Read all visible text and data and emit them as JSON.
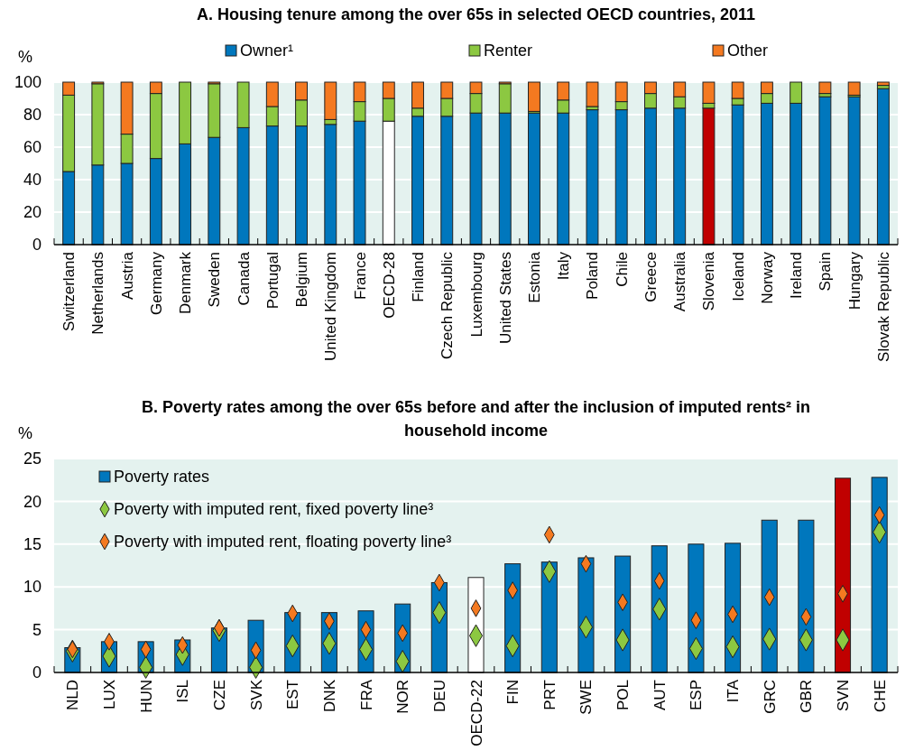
{
  "chart_data": [
    {
      "type": "bar",
      "title": "A. Housing tenure among the over 65s in selected OECD countries, 2011",
      "ylabel": "%",
      "stacked": true,
      "legend": "top",
      "grid": "y",
      "ylim": [
        0,
        100
      ],
      "yticks": [
        0,
        20,
        40,
        60,
        80,
        100
      ],
      "categories": [
        "Switzerland",
        "Netherlands",
        "Austria",
        "Germany",
        "Denmark",
        "Sweden",
        "Canada",
        "Portugal",
        "Belgium",
        "United Kingdom",
        "France",
        "OECD-28",
        "Finland",
        "Czech Republic",
        "Luxembourg",
        "United States",
        "Estonia",
        "Italy",
        "Poland",
        "Chile",
        "Greece",
        "Australia",
        "Slovenia",
        "Iceland",
        "Norway",
        "Ireland",
        "Spain",
        "Hungary",
        "Slovak Republic"
      ],
      "series": [
        {
          "name": "Owner¹",
          "color": "#0077bd",
          "colors": [
            "#0077bd",
            "#0077bd",
            "#0077bd",
            "#0077bd",
            "#0077bd",
            "#0077bd",
            "#0077bd",
            "#0077bd",
            "#0077bd",
            "#0077bd",
            "#0077bd",
            "#ffffff",
            "#0077bd",
            "#0077bd",
            "#0077bd",
            "#0077bd",
            "#0077bd",
            "#0077bd",
            "#0077bd",
            "#0077bd",
            "#0077bd",
            "#0077bd",
            "#c00000",
            "#0077bd",
            "#0077bd",
            "#0077bd",
            "#0077bd",
            "#0077bd",
            "#0077bd"
          ],
          "values": [
            45,
            49,
            50,
            53,
            62,
            66,
            72,
            73,
            73,
            74,
            76,
            76,
            79,
            79,
            81,
            81,
            81,
            81,
            83,
            83,
            84,
            84,
            84,
            86,
            87,
            87,
            91,
            91,
            96
          ]
        },
        {
          "name": "Renter",
          "color": "#8cc841",
          "values": [
            47,
            50,
            18,
            40,
            38,
            33,
            28,
            12,
            16,
            3,
            12,
            14,
            5,
            11,
            12,
            18,
            1,
            8,
            2,
            5,
            9,
            7,
            3,
            4,
            6,
            13,
            2,
            1,
            2
          ]
        },
        {
          "name": "Other",
          "color": "#f47920",
          "values": [
            8,
            1,
            32,
            7,
            0,
            1,
            0,
            15,
            11,
            23,
            12,
            10,
            16,
            10,
            7,
            1,
            18,
            11,
            15,
            12,
            7,
            9,
            13,
            10,
            7,
            0,
            7,
            8,
            2
          ]
        }
      ]
    },
    {
      "type": "bar",
      "title": "B. Poverty rates among the over 65s before and after the inclusion of imputed rents² in household income",
      "ylabel": "%",
      "legend": "top left",
      "grid": "y",
      "marker": "diamond",
      "ylim": [
        0,
        25
      ],
      "yticks": [
        0,
        5,
        10,
        15,
        20,
        25
      ],
      "categories": [
        "NLD",
        "LUX",
        "HUN",
        "ISL",
        "CZE",
        "SVK",
        "EST",
        "DNK",
        "FRA",
        "NOR",
        "DEU",
        "OECD-22",
        "FIN",
        "PRT",
        "SWE",
        "POL",
        "AUT",
        "ESP",
        "ITA",
        "GRC",
        "GBR",
        "SVN",
        "CHE"
      ],
      "series": [
        {
          "name": "Poverty rates",
          "color": "#0077bd",
          "colors": [
            "#0077bd",
            "#0077bd",
            "#0077bd",
            "#0077bd",
            "#0077bd",
            "#0077bd",
            "#0077bd",
            "#0077bd",
            "#0077bd",
            "#0077bd",
            "#0077bd",
            "#ffffff",
            "#0077bd",
            "#0077bd",
            "#0077bd",
            "#0077bd",
            "#0077bd",
            "#0077bd",
            "#0077bd",
            "#0077bd",
            "#0077bd",
            "#c00000",
            "#0077bd"
          ],
          "values": [
            2.9,
            3.6,
            3.6,
            3.8,
            5.2,
            6.1,
            7.0,
            7.0,
            7.2,
            8.0,
            10.5,
            11.1,
            12.7,
            12.9,
            13.4,
            13.6,
            14.8,
            15.0,
            15.1,
            17.8,
            17.8,
            22.7,
            22.8
          ]
        },
        {
          "name": "Poverty with imputed rent, fixed poverty line³",
          "type": "scatter",
          "color": "#8cc841",
          "values": [
            2.5,
            1.9,
            0.6,
            2.1,
            4.9,
            0.6,
            3.1,
            3.4,
            2.7,
            1.3,
            7.0,
            4.3,
            3.1,
            11.8,
            5.3,
            3.8,
            7.4,
            2.8,
            3.0,
            3.9,
            3.8,
            3.8,
            16.4
          ]
        },
        {
          "name": "Poverty with imputed rent, floating poverty line³",
          "type": "scatter",
          "color": "#f47920",
          "values": [
            2.7,
            3.6,
            2.7,
            3.2,
            5.2,
            2.6,
            6.9,
            6.0,
            5.0,
            4.6,
            10.5,
            7.5,
            9.6,
            16.1,
            12.7,
            8.2,
            10.7,
            6.1,
            6.8,
            8.8,
            6.5,
            9.2,
            18.4
          ]
        }
      ]
    }
  ]
}
